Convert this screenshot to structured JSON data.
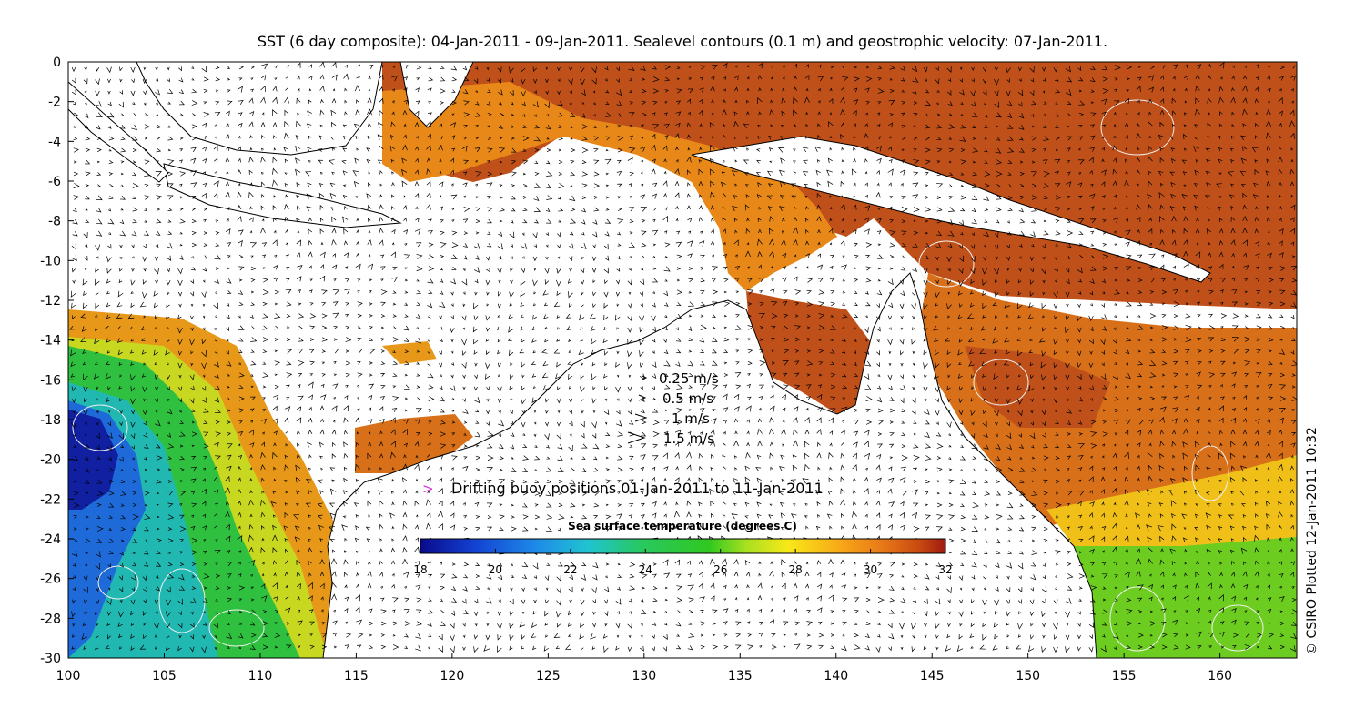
{
  "title": "SST (6 day composite): 04-Jan-2011 - 09-Jan-2011. Sealevel contours (0.1 m) and geostrophic velocity: 07-Jan-2011.",
  "copyright": "© CSIRO Plotted 12-Jan-2011 10:32",
  "axes": {
    "x_ticks": [
      "100",
      "105",
      "110",
      "115",
      "120",
      "125",
      "130",
      "135",
      "140",
      "145",
      "150",
      "155",
      "160"
    ],
    "y_ticks": [
      "0",
      "-2",
      "-4",
      "-6",
      "-8",
      "-10",
      "-12",
      "-14",
      "-16",
      "-18",
      "-20",
      "-22",
      "-24",
      "-26",
      "-28",
      "-30"
    ],
    "lon_range": [
      100,
      164
    ],
    "lat_range": [
      -30,
      0
    ]
  },
  "velocity_legend": [
    {
      "label": "0.25 m/s",
      "speed": 0.25
    },
    {
      "label": "0.5 m/s",
      "speed": 0.5
    },
    {
      "label": "1 m/s",
      "speed": 1
    },
    {
      "label": "1.5 m/s",
      "speed": 1.5
    }
  ],
  "buoy_legend": {
    "symbol": ">",
    "label": "Drifting buoy positions 01-Jan-2011 to 11-Jan-2011",
    "color": "#dd33dd"
  },
  "colorbar": {
    "title": "Sea surface temperature (degrees C)",
    "ticks": [
      "18",
      "20",
      "22",
      "24",
      "26",
      "28",
      "30",
      "32"
    ],
    "range": [
      18,
      32
    ],
    "colors": [
      "#0a0a8c",
      "#1240d0",
      "#1e8ae8",
      "#20c4d0",
      "#28c860",
      "#30c820",
      "#a8e020",
      "#f8e818",
      "#f8a818",
      "#e87818",
      "#c84a10",
      "#a01a10"
    ]
  },
  "colors": {
    "land": "#ffffff",
    "coast": "#000000",
    "contour": "#f0f0f0",
    "arrow": "#000000"
  }
}
